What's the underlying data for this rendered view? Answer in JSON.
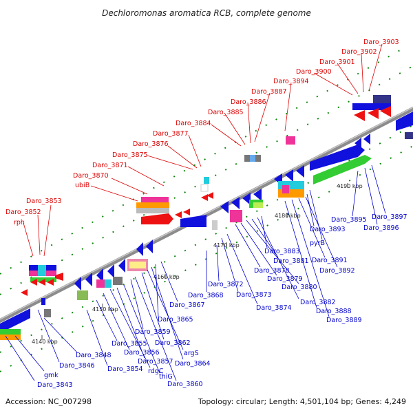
{
  "header": {
    "title": "Dechloromonas aromatica RCB, complete genome"
  },
  "footer": {
    "accession": "Accession: NC_007298",
    "summary": "Topology: circular; Length: 4,501,104 bp; Genes: 4,249"
  },
  "tick_labels": [
    "4140 kbp",
    "4150 kbp",
    "4160 kbp",
    "4170 kbp",
    "4180 kbp",
    "4190 kbp"
  ],
  "forward_labels": [
    "rph",
    "Daro_3852",
    "Daro_3853",
    "ubiB",
    "Daro_3870",
    "Daro_3871",
    "Daro_3875",
    "Daro_3876",
    "Daro_3877",
    "Daro_3884",
    "Daro_3885",
    "Daro_3886",
    "Daro_3887",
    "Daro_3894",
    "Daro_3900",
    "Daro_3901",
    "Daro_3902",
    "Daro_3903"
  ],
  "reverse_labels": [
    "Daro_3843",
    "gmk",
    "Daro_3846",
    "Daro_3848",
    "Daro_3854",
    "Daro_3855",
    "Daro_3856",
    "rdgC",
    "Daro_3857",
    "thiG",
    "Daro_3859",
    "Daro_3860",
    "Daro_3862",
    "argS",
    "Daro_3864",
    "Daro_3865",
    "Daro_3867",
    "Daro_3868",
    "Daro_3872",
    "Daro_3873",
    "Daro_3874",
    "Daro_3878",
    "Daro_3879",
    "Daro_3880",
    "Daro_3881",
    "Daro_3882",
    "Daro_3883",
    "Daro_3888",
    "Daro_3889",
    "Daro_3891",
    "Daro_3892",
    "Daro_3893",
    "pyrB",
    "Daro_3895",
    "Daro_3896",
    "Daro_3897"
  ],
  "colors": {
    "forward_label": "#dd0000",
    "reverse_label": "#0000cc",
    "backbone": "#8c8c8c",
    "tick_mark": "#118811",
    "gene_red": "#ee1111",
    "gene_blue": "#1111dd",
    "gene_green": "#33cc33",
    "gene_orange": "#ff9900",
    "gene_pink": "#ee3399",
    "gene_cyan": "#22ccdd",
    "gene_gray": "#aaaaaa",
    "gene_navy": "#333388"
  }
}
